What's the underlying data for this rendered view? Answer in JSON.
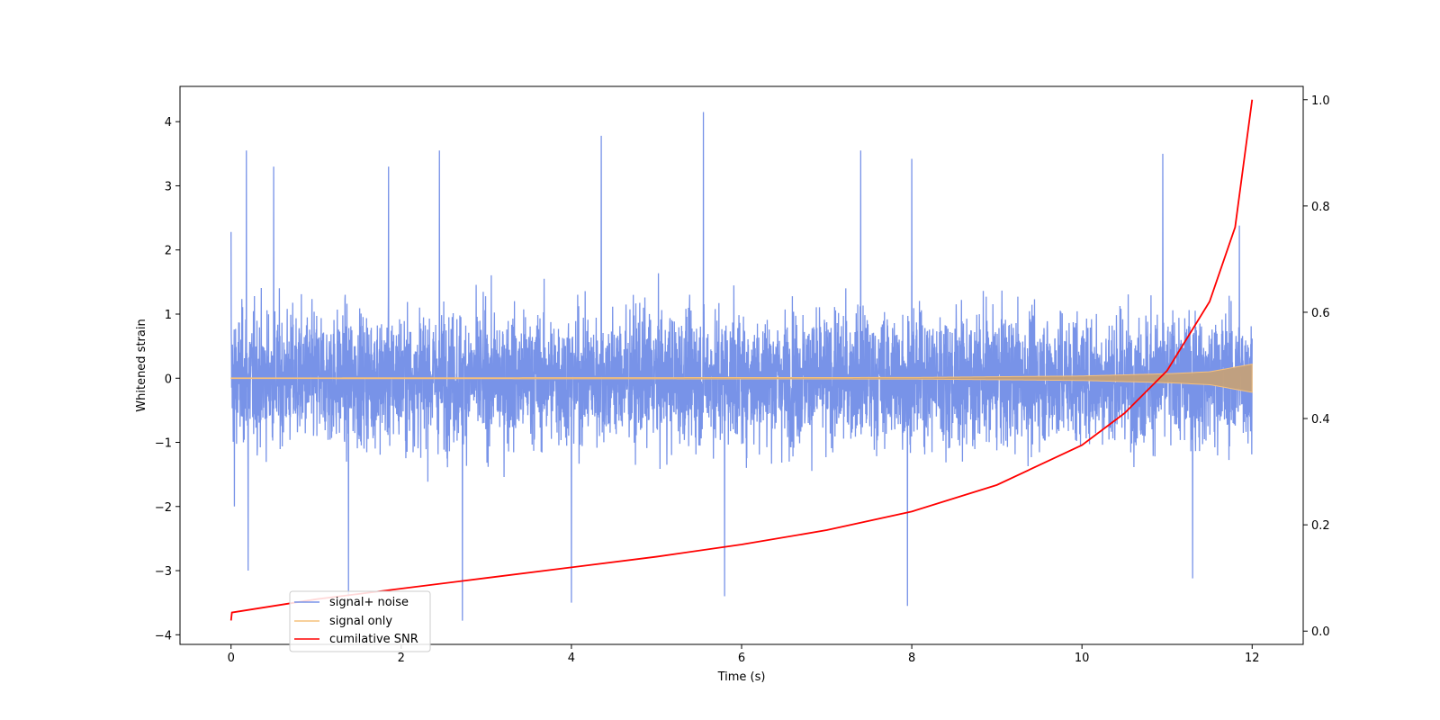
{
  "chart_data": {
    "type": "line",
    "xlabel": "Time (s)",
    "ylabel": "Whitened strain",
    "y2label": "",
    "xlim": [
      -0.6,
      12.6
    ],
    "ylim": [
      -4.15,
      4.55
    ],
    "y2lim": [
      -0.025,
      1.025
    ],
    "xticks": [
      0,
      2,
      4,
      6,
      8,
      10,
      12
    ],
    "yticks": [
      -4,
      -3,
      -2,
      -1,
      0,
      1,
      2,
      3,
      4
    ],
    "y2ticks": [
      0.0,
      0.2,
      0.4,
      0.6,
      0.8,
      1.0
    ],
    "xtick_labels": [
      "0",
      "2",
      "4",
      "6",
      "8",
      "10",
      "12"
    ],
    "ytick_labels": [
      "−4",
      "−3",
      "−2",
      "−1",
      "0",
      "1",
      "2",
      "3",
      "4"
    ],
    "y2tick_labels": [
      "0.0",
      "0.2",
      "0.4",
      "0.6",
      "0.8",
      "1.0"
    ],
    "legend": {
      "position": "lower left"
    },
    "series": [
      {
        "name": "signal+ noise",
        "color": "#7893e8",
        "axis": "left",
        "description_values": {
          "x_range": [
            0,
            12
          ],
          "typical_band": [
            -1.6,
            1.6
          ],
          "extremes": [
            [
              0.0,
              2.28
            ],
            [
              0.04,
              -2.0
            ],
            [
              0.18,
              3.55
            ],
            [
              0.2,
              -3.0
            ],
            [
              0.5,
              3.3
            ],
            [
              1.38,
              -3.4
            ],
            [
              1.85,
              3.3
            ],
            [
              2.45,
              3.55
            ],
            [
              2.72,
              -3.78
            ],
            [
              4.0,
              -3.5
            ],
            [
              4.35,
              3.78
            ],
            [
              5.55,
              4.15
            ],
            [
              5.8,
              -3.4
            ],
            [
              7.4,
              3.55
            ],
            [
              7.95,
              -3.55
            ],
            [
              8.0,
              3.42
            ],
            [
              10.95,
              3.5
            ],
            [
              11.3,
              -3.12
            ],
            [
              11.85,
              2.38
            ]
          ]
        }
      },
      {
        "name": "signal only",
        "color": "#f5c07c",
        "axis": "left",
        "description_values": {
          "x_range": [
            0,
            12
          ],
          "amplitude_points": [
            [
              0,
              0.005
            ],
            [
              8,
              0.012
            ],
            [
              10,
              0.035
            ],
            [
              11,
              0.07
            ],
            [
              11.5,
              0.1
            ],
            [
              12,
              0.22
            ]
          ]
        }
      },
      {
        "name": "cumilative SNR",
        "color": "#ff0000",
        "axis": "right",
        "x": [
          0,
          0.01,
          1,
          2,
          3,
          4,
          5,
          6,
          7,
          8,
          9,
          10,
          10.5,
          11,
          11.5,
          11.8,
          12
        ],
        "values": [
          0.02,
          0.035,
          0.06,
          0.08,
          0.1,
          0.12,
          0.14,
          0.163,
          0.19,
          0.225,
          0.275,
          0.35,
          0.41,
          0.49,
          0.62,
          0.76,
          1.0
        ]
      }
    ]
  }
}
